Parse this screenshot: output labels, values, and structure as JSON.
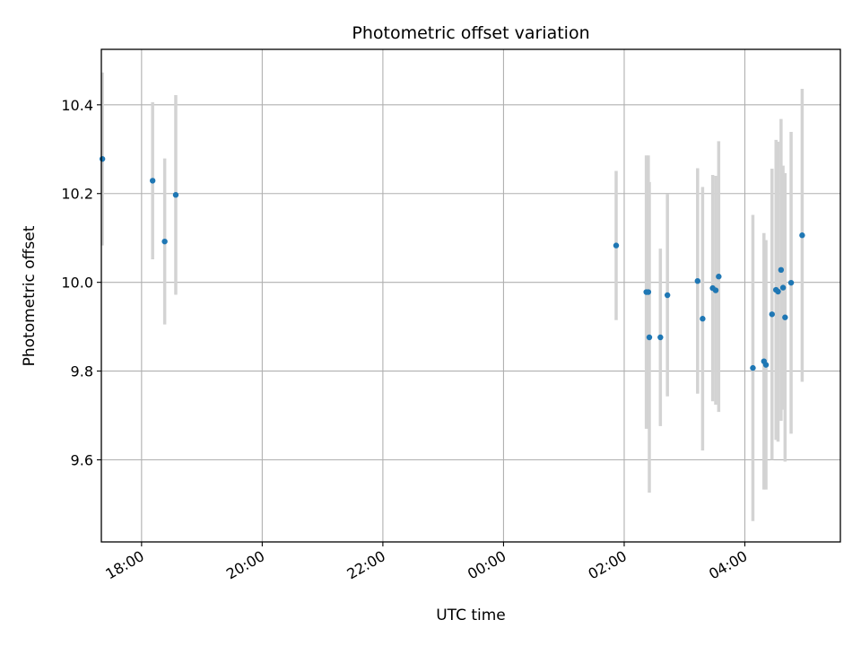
{
  "chart_data": {
    "type": "scatter",
    "title": "Photometric offset variation",
    "xlabel": "UTC time",
    "ylabel": "Photometric offset",
    "x_axis": "time",
    "xlim": [
      "17:20",
      "29:35"
    ],
    "ylim": [
      9.415,
      10.525
    ],
    "xticks": [
      {
        "value": "18:00",
        "label": "18:00"
      },
      {
        "value": "20:00",
        "label": "20:00"
      },
      {
        "value": "22:00",
        "label": "22:00"
      },
      {
        "value": "24:00",
        "label": "00:00"
      },
      {
        "value": "26:00",
        "label": "02:00"
      },
      {
        "value": "28:00",
        "label": "04:00"
      }
    ],
    "yticks": [
      9.6,
      9.8,
      10.0,
      10.2,
      10.4
    ],
    "grid": true,
    "marker_color": "#1f77b4",
    "errorbar_color": "#d3d3d3",
    "points": [
      {
        "t": "17:21",
        "y": 10.278,
        "err": 0.195
      },
      {
        "t": "18:11",
        "y": 10.229,
        "err": 0.177
      },
      {
        "t": "18:23",
        "y": 10.092,
        "err": 0.187
      },
      {
        "t": "18:34",
        "y": 10.197,
        "err": 0.225
      },
      {
        "t": "25:52",
        "y": 10.083,
        "err": 0.168
      },
      {
        "t": "26:22",
        "y": 9.978,
        "err": 0.308
      },
      {
        "t": "26:24",
        "y": 9.978,
        "err": 0.308
      },
      {
        "t": "26:25",
        "y": 9.876,
        "err": 0.35
      },
      {
        "t": "26:36",
        "y": 9.876,
        "err": 0.2
      },
      {
        "t": "26:43",
        "y": 9.971,
        "err": 0.228
      },
      {
        "t": "27:13",
        "y": 10.003,
        "err": 0.254
      },
      {
        "t": "27:18",
        "y": 9.918,
        "err": 0.297
      },
      {
        "t": "27:28",
        "y": 9.987,
        "err": 0.255
      },
      {
        "t": "27:31",
        "y": 9.982,
        "err": 0.258
      },
      {
        "t": "27:34",
        "y": 10.013,
        "err": 0.305
      },
      {
        "t": "28:08",
        "y": 9.807,
        "err": 0.345
      },
      {
        "t": "28:19",
        "y": 9.822,
        "err": 0.289
      },
      {
        "t": "28:21",
        "y": 9.814,
        "err": 0.281
      },
      {
        "t": "28:27",
        "y": 9.928,
        "err": 0.328
      },
      {
        "t": "28:31",
        "y": 9.983,
        "err": 0.338
      },
      {
        "t": "28:33",
        "y": 9.979,
        "err": 0.338
      },
      {
        "t": "28:36",
        "y": 10.028,
        "err": 0.34
      },
      {
        "t": "28:38",
        "y": 9.988,
        "err": 0.275
      },
      {
        "t": "28:40",
        "y": 9.921,
        "err": 0.325
      },
      {
        "t": "28:46",
        "y": 9.999,
        "err": 0.34
      },
      {
        "t": "28:57",
        "y": 10.106,
        "err": 0.33
      }
    ]
  }
}
